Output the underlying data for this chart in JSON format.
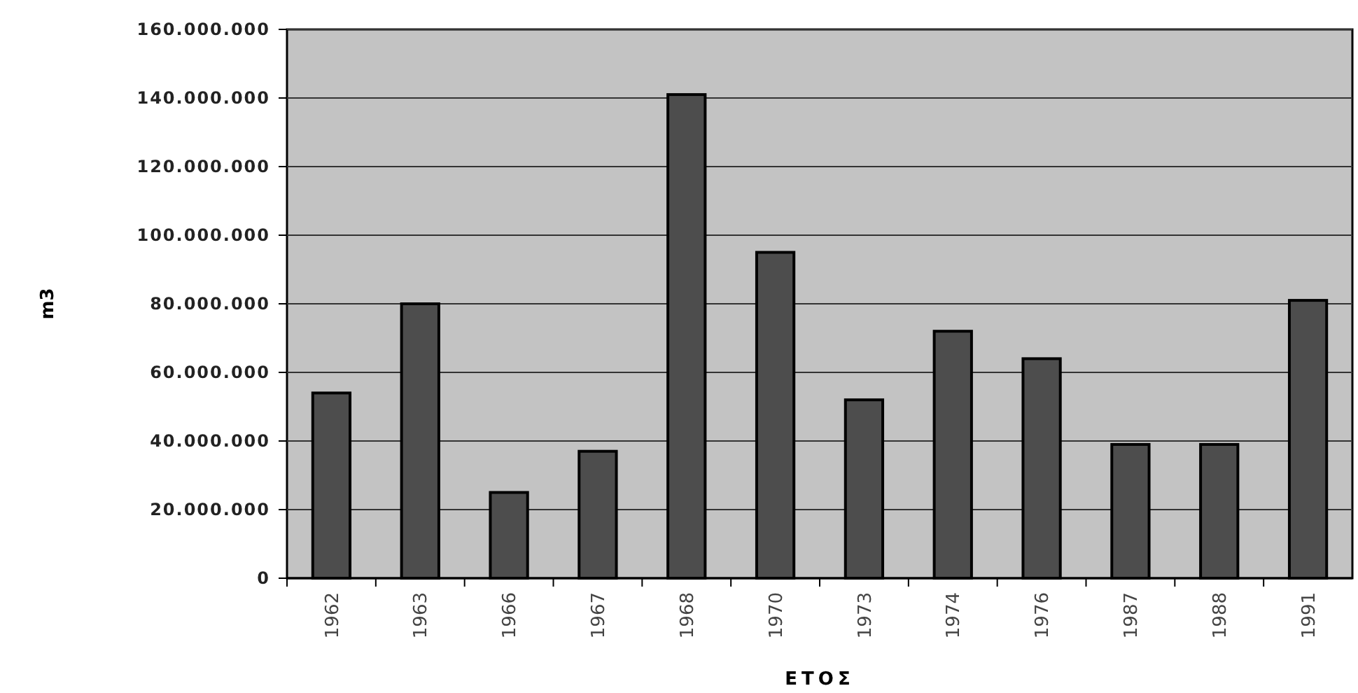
{
  "chart_data": {
    "type": "bar",
    "xlabel": "ΕΤΟΣ",
    "ylabel": "m3",
    "categories": [
      "1962",
      "1963",
      "1966",
      "1967",
      "1968",
      "1970",
      "1973",
      "1974",
      "1976",
      "1987",
      "1988",
      "1991"
    ],
    "values": [
      54000000,
      80000000,
      25000000,
      37000000,
      141000000,
      95000000,
      52000000,
      72000000,
      64000000,
      39000000,
      39000000,
      81000000
    ],
    "color": "#4d4d4d",
    "ylim": [
      0,
      160000000
    ],
    "yticks": [
      0,
      {
        "value": 20000000,
        "label": "20.000.000"
      },
      {
        "value": 40000000,
        "label": "40.000.000"
      },
      {
        "value": 60000000,
        "label": "60.000.000"
      },
      {
        "value": 80000000,
        "label": "80.000.000"
      },
      {
        "value": 100000000,
        "label": "100.000.000"
      },
      {
        "value": 120000000,
        "label": "120.000.000"
      },
      {
        "value": 140000000,
        "label": "140.000.000"
      },
      {
        "value": 160000000,
        "label": "160.000.000"
      }
    ],
    "grid": "y"
  }
}
